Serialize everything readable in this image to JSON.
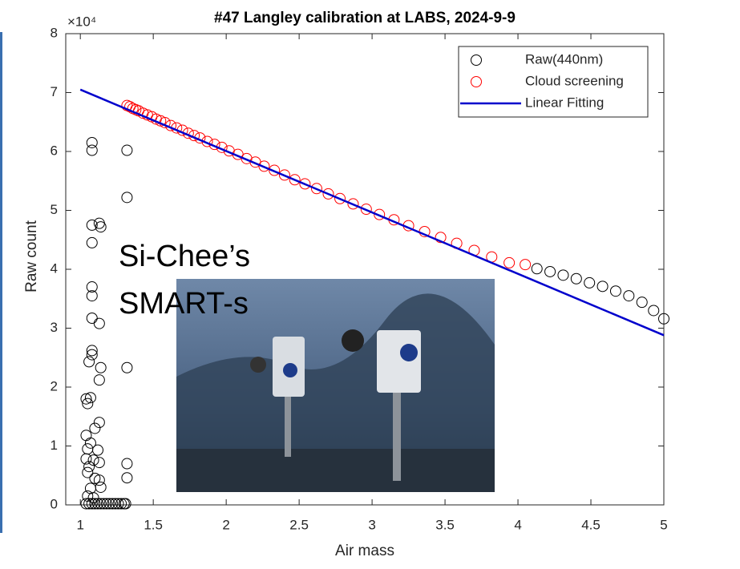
{
  "chart_data": {
    "type": "scatter",
    "title": "#47 Langley calibration at LABS, 2024-9-9",
    "x_label": "Air mass",
    "y_label": "Raw count",
    "y_exponent_label": "×10⁴",
    "xlim": [
      0.9,
      5
    ],
    "xticks": [
      1,
      1.5,
      2,
      2.5,
      3,
      3.5,
      4,
      4.5,
      5
    ],
    "ylim": [
      0,
      8
    ],
    "yticks": [
      0,
      1,
      2,
      3,
      4,
      5,
      6,
      7,
      8
    ],
    "legend_position": "upper right",
    "annotations": [
      "Si-Chee’s",
      "SMART-s"
    ],
    "series": [
      {
        "name": "Raw(440nm)",
        "mode": "markers",
        "color": "#000000",
        "x": [
          1.08,
          1.08,
          1.32,
          1.32,
          1.08,
          1.13,
          1.14,
          1.08,
          1.08,
          1.08,
          1.08,
          1.13,
          1.08,
          1.08,
          1.14,
          1.32,
          1.06,
          1.13,
          1.04,
          1.07,
          1.05,
          1.13,
          1.1,
          1.04,
          1.07,
          1.05,
          1.12,
          1.04,
          1.09,
          1.13,
          1.06,
          1.32,
          1.05,
          1.1,
          1.13,
          1.32,
          1.07,
          1.14,
          1.05,
          1.09,
          1.04,
          1.06,
          1.08,
          1.1,
          1.12,
          1.14,
          1.16,
          1.18,
          1.2,
          1.22,
          1.24,
          1.26,
          1.28,
          1.3,
          1.31,
          4.13,
          4.22,
          4.31,
          4.4,
          4.49,
          4.58,
          4.67,
          4.76,
          4.85,
          4.93,
          5.0
        ],
        "values": [
          6.15,
          6.02,
          6.02,
          5.22,
          4.75,
          4.78,
          4.72,
          4.45,
          3.7,
          3.55,
          3.17,
          3.08,
          2.62,
          2.55,
          2.33,
          2.33,
          2.43,
          2.12,
          1.8,
          1.82,
          1.72,
          1.4,
          1.3,
          1.18,
          1.05,
          0.95,
          0.93,
          0.78,
          0.76,
          0.72,
          0.65,
          0.7,
          0.55,
          0.45,
          0.42,
          0.46,
          0.28,
          0.3,
          0.15,
          0.12,
          0.02,
          0.02,
          0.02,
          0.02,
          0.02,
          0.02,
          0.02,
          0.02,
          0.02,
          0.02,
          0.02,
          0.02,
          0.02,
          0.02,
          0.02,
          4.01,
          3.96,
          3.9,
          3.84,
          3.77,
          3.71,
          3.63,
          3.55,
          3.44,
          3.3,
          3.16
        ]
      },
      {
        "name": "Cloud screening",
        "mode": "markers",
        "color": "#ff0000",
        "x": [
          1.32,
          1.34,
          1.36,
          1.38,
          1.4,
          1.43,
          1.46,
          1.49,
          1.52,
          1.55,
          1.58,
          1.62,
          1.66,
          1.7,
          1.74,
          1.78,
          1.82,
          1.87,
          1.92,
          1.97,
          2.02,
          2.08,
          2.14,
          2.2,
          2.26,
          2.33,
          2.4,
          2.47,
          2.54,
          2.62,
          2.7,
          2.78,
          2.87,
          2.96,
          3.05,
          3.15,
          3.25,
          3.36,
          3.47,
          3.58,
          3.7,
          3.82,
          3.94,
          4.05
        ],
        "values": [
          6.78,
          6.76,
          6.73,
          6.71,
          6.69,
          6.65,
          6.62,
          6.59,
          6.55,
          6.52,
          6.49,
          6.44,
          6.4,
          6.36,
          6.31,
          6.27,
          6.23,
          6.17,
          6.12,
          6.07,
          6.01,
          5.95,
          5.88,
          5.82,
          5.75,
          5.68,
          5.6,
          5.52,
          5.45,
          5.37,
          5.28,
          5.2,
          5.11,
          5.02,
          4.93,
          4.84,
          4.74,
          4.64,
          4.54,
          4.44,
          4.32,
          4.21,
          4.11,
          4.08
        ]
      },
      {
        "name": "Linear Fitting",
        "mode": "line",
        "color": "#0000cc",
        "x": [
          1,
          5
        ],
        "values": [
          7.05,
          2.88
        ]
      }
    ]
  }
}
